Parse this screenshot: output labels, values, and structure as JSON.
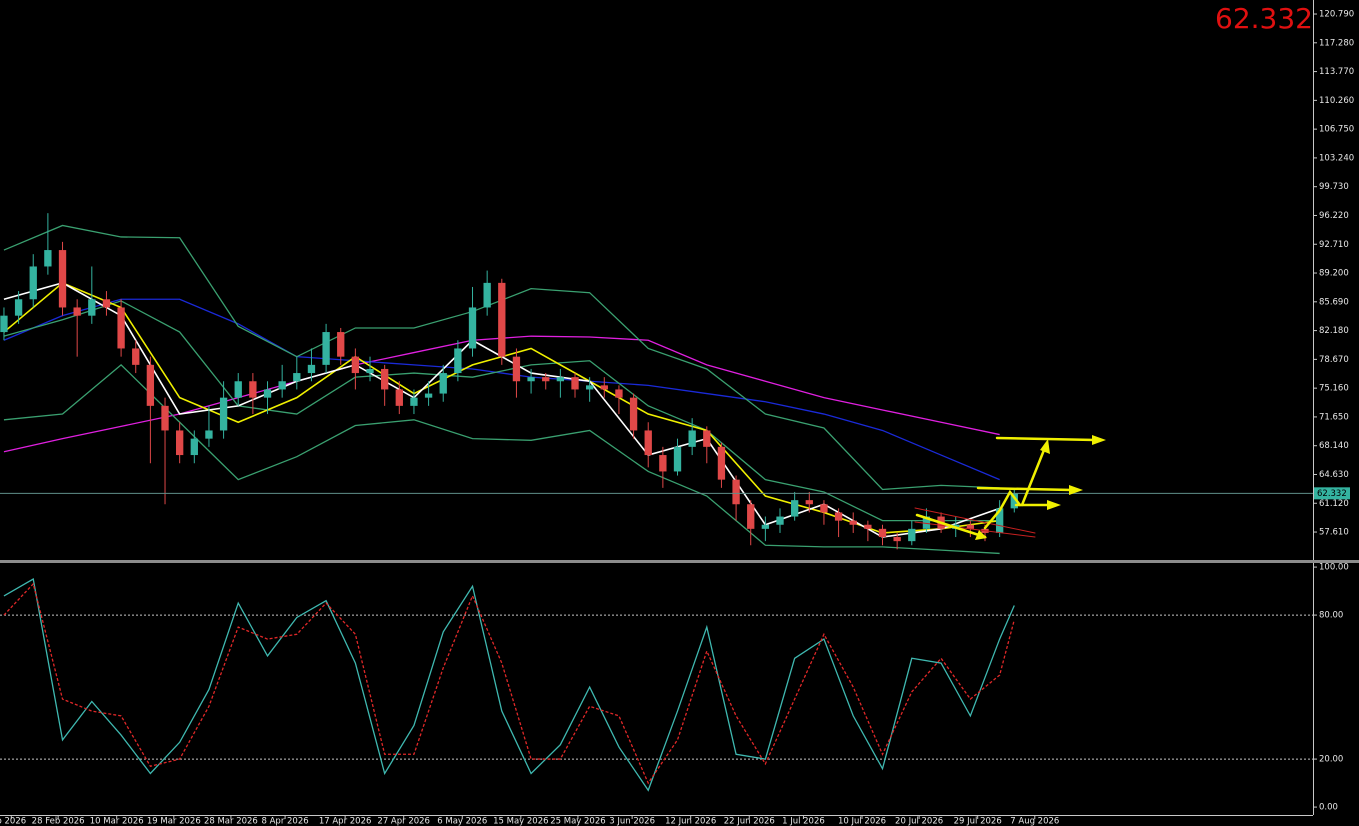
{
  "chart_data": [
    {
      "type": "candlestick",
      "last_price": 62.332,
      "price_line_color": "#5f8f8a",
      "up_color": "#34b3a0",
      "down_color": "#e04848",
      "xlim": [
        -0.27,
        89.4
      ],
      "ylim": [
        54.2,
        122.5
      ],
      "yticks": [
        {
          "value": 120.79,
          "label": "120.790"
        },
        {
          "value": 117.28,
          "label": "117.280"
        },
        {
          "value": 113.77,
          "label": "113.770"
        },
        {
          "value": 110.26,
          "label": "110.260"
        },
        {
          "value": 106.75,
          "label": "106.750"
        },
        {
          "value": 103.24,
          "label": "103.240"
        },
        {
          "value": 99.73,
          "label": "99.730"
        },
        {
          "value": 96.22,
          "label": "96.220"
        },
        {
          "value": 92.71,
          "label": "92.710"
        },
        {
          "value": 89.2,
          "label": "89.200"
        },
        {
          "value": 85.69,
          "label": "85.690"
        },
        {
          "value": 82.18,
          "label": "82.180"
        },
        {
          "value": 78.67,
          "label": "78.670"
        },
        {
          "value": 75.16,
          "label": "75.160"
        },
        {
          "value": 71.65,
          "label": "71.650"
        },
        {
          "value": 68.14,
          "label": "68.140"
        },
        {
          "value": 64.63,
          "label": "64.630"
        },
        {
          "value": 61.12,
          "label": "61.120"
        },
        {
          "value": 57.61,
          "label": "57.610"
        }
      ],
      "xticks": [
        {
          "value": 0.5,
          "label": "b 2026"
        },
        {
          "value": 3.7,
          "label": "28 Feb 2026"
        },
        {
          "value": 7.7,
          "label": "10 Mar 2026"
        },
        {
          "value": 11.6,
          "label": "19 Mar 2026"
        },
        {
          "value": 15.5,
          "label": "28 Mar 2026"
        },
        {
          "value": 19.2,
          "label": "8 Apr 2026"
        },
        {
          "value": 23.3,
          "label": "17 Apr 2026"
        },
        {
          "value": 27.3,
          "label": "27 Apr 2026"
        },
        {
          "value": 31.3,
          "label": "6 May 2026"
        },
        {
          "value": 35.3,
          "label": "15 May 2026"
        },
        {
          "value": 39.2,
          "label": "25 May 2026"
        },
        {
          "value": 42.9,
          "label": "3 Jun 2026"
        },
        {
          "value": 46.9,
          "label": "12 Jun 2026"
        },
        {
          "value": 50.9,
          "label": "22 Jun 2026"
        },
        {
          "value": 54.6,
          "label": "1 Jul 2026"
        },
        {
          "value": 58.6,
          "label": "10 Jul 2026"
        },
        {
          "value": 62.5,
          "label": "20 Jul 2026"
        },
        {
          "value": 66.5,
          "label": "29 Jul 2026"
        },
        {
          "value": 70.4,
          "label": "7 Aug 2026"
        }
      ],
      "x": [
        0,
        1,
        2,
        3,
        4,
        5,
        6,
        7,
        8,
        9,
        10,
        11,
        12,
        13,
        14,
        15,
        16,
        17,
        18,
        19,
        20,
        21,
        22,
        23,
        24,
        25,
        26,
        27,
        28,
        29,
        30,
        31,
        32,
        33,
        34,
        35,
        36,
        37,
        38,
        39,
        40,
        41,
        42,
        43,
        44,
        45,
        46,
        47,
        48,
        49,
        50,
        51,
        52,
        53,
        54,
        55,
        56,
        57,
        58,
        59,
        60,
        61,
        62,
        63,
        64,
        65,
        66,
        67,
        68,
        69
      ],
      "open": [
        82,
        84,
        86,
        90,
        92,
        85,
        84,
        86,
        85,
        80,
        78,
        73,
        70,
        67,
        69,
        70,
        74,
        76,
        74,
        75,
        76,
        77,
        78,
        82,
        79,
        77,
        77.5,
        75,
        73,
        74,
        74.5,
        77,
        80,
        85,
        88,
        79,
        76,
        76.5,
        76,
        76.5,
        75,
        75.5,
        75,
        74,
        70,
        67,
        65,
        68,
        70,
        68,
        64,
        61,
        58,
        58.5,
        59.5,
        61.5,
        61,
        60,
        59,
        58.5,
        58,
        57,
        56.5,
        58,
        59.5,
        58,
        58.5,
        58,
        57.5,
        60.5
      ],
      "high": [
        85,
        87,
        91.5,
        96.5,
        93,
        86,
        90,
        87,
        86,
        81,
        79,
        74,
        71,
        70,
        73,
        76,
        77,
        77,
        76,
        78,
        79,
        80,
        83,
        82.5,
        80,
        79,
        78,
        76,
        75,
        76,
        78,
        81,
        87.5,
        89.5,
        88.5,
        80,
        77.5,
        77,
        77.5,
        77,
        76.5,
        76.5,
        75.5,
        74.5,
        71,
        68,
        69,
        71.5,
        70.5,
        68.5,
        64.5,
        61.5,
        59.5,
        60.5,
        62.5,
        62.5,
        61.5,
        60.5,
        60,
        59,
        58.5,
        57.5,
        59,
        60.5,
        60,
        59.5,
        59,
        58.5,
        61.5,
        62.8
      ],
      "low": [
        81,
        83,
        85,
        89,
        84,
        79,
        83,
        84,
        79,
        77,
        66,
        61,
        66,
        66,
        68,
        69,
        73,
        72,
        72,
        74,
        75,
        76,
        77,
        78,
        75,
        76,
        73,
        72,
        72,
        73,
        73.5,
        76,
        79,
        84,
        78,
        74,
        74.5,
        75,
        74,
        74,
        73.5,
        74,
        72,
        69,
        65.5,
        63,
        64.5,
        67,
        66,
        63,
        59,
        56,
        56.5,
        57.5,
        59,
        60,
        58.5,
        57,
        57.5,
        56.5,
        56,
        55.5,
        56,
        57.5,
        57.5,
        57,
        57,
        56.5,
        57,
        60
      ],
      "close": [
        84,
        86,
        90,
        92,
        85,
        84,
        86,
        85,
        80,
        78,
        73,
        70,
        67,
        69,
        70,
        74,
        76,
        74,
        75,
        76,
        77,
        78,
        82,
        79,
        77,
        77.5,
        75,
        73,
        74,
        74.5,
        77,
        80,
        85,
        88,
        79,
        76,
        76.5,
        76,
        76.5,
        75,
        75.5,
        75,
        74,
        70,
        67,
        65,
        68,
        70,
        68,
        64,
        61,
        58,
        58.5,
        59.5,
        61.5,
        61,
        60,
        59,
        58.5,
        58,
        57,
        56.5,
        58,
        59.5,
        58,
        58.5,
        58,
        57.5,
        60.5,
        62.332
      ],
      "series": [
        {
          "color": "#e020e0",
          "x": [
            0,
            4,
            8,
            12,
            16,
            20,
            24,
            28,
            32,
            36,
            40,
            44,
            48,
            52,
            56,
            60,
            64,
            68
          ],
          "values": [
            67.4,
            69,
            70.5,
            72,
            74,
            76,
            78,
            79.5,
            81,
            81.5,
            81.4,
            81,
            78,
            76,
            74,
            72.5,
            71,
            69.5
          ]
        },
        {
          "color": "#1a2ad8",
          "x": [
            0,
            4,
            8,
            12,
            16,
            20,
            24,
            28,
            32,
            36,
            40,
            44,
            48,
            52,
            56,
            60,
            64,
            68
          ],
          "values": [
            81,
            84,
            86,
            86,
            83,
            79,
            78.5,
            78,
            77.5,
            76.5,
            76,
            75.5,
            74.5,
            73.5,
            72,
            70,
            67,
            64
          ]
        },
        {
          "color": "#3aa070",
          "x": [
            0,
            4,
            8,
            12,
            16,
            20,
            24,
            28,
            32,
            36,
            40,
            44,
            48,
            52,
            56,
            60,
            64,
            68
          ],
          "values": [
            92,
            95,
            93.6,
            93.5,
            82.7,
            79,
            82.5,
            82.5,
            84.5,
            87.3,
            86.8,
            80,
            77.5,
            72,
            70.3,
            62.8,
            63.3,
            63
          ]
        },
        {
          "color": "#3aa070",
          "x": [
            0,
            4,
            8,
            12,
            16,
            20,
            24,
            28,
            32,
            36,
            40,
            44,
            48,
            52,
            56,
            60,
            64,
            68
          ],
          "values": [
            81.5,
            83.5,
            85.8,
            82,
            73,
            72,
            76.5,
            77,
            76.5,
            78,
            78.5,
            73,
            70,
            64,
            62.5,
            59,
            59,
            59
          ]
        },
        {
          "color": "#3aa070",
          "x": [
            0,
            4,
            8,
            12,
            16,
            20,
            24,
            28,
            32,
            36,
            40,
            44,
            48,
            52,
            56,
            60,
            64,
            68
          ],
          "values": [
            71.3,
            72,
            78,
            71,
            64,
            66.8,
            70.6,
            71.3,
            69,
            68.8,
            70,
            65,
            62,
            56,
            55.8,
            55.8,
            55.4,
            55
          ]
        },
        {
          "color": "#f0f000",
          "x": [
            0,
            4,
            8,
            12,
            16,
            20,
            24,
            28,
            32,
            36,
            40,
            44,
            48,
            52,
            56,
            60,
            64,
            68
          ],
          "values": [
            82,
            88,
            85,
            74,
            71,
            74,
            79,
            74.5,
            78,
            80,
            76,
            72,
            70,
            62,
            60,
            57.5,
            58,
            59
          ]
        },
        {
          "color": "#ffffff",
          "x": [
            0,
            4,
            8,
            12,
            16,
            20,
            24,
            28,
            32,
            36,
            40,
            44,
            48,
            52,
            56,
            60,
            64,
            68
          ],
          "values": [
            86,
            88,
            84,
            72,
            73,
            76,
            78,
            74,
            81,
            77,
            76,
            67,
            69,
            58.5,
            61,
            57,
            58,
            60.5
          ]
        }
      ]
    },
    {
      "type": "line",
      "xlim": [
        -0.27,
        89.4
      ],
      "ylim": [
        -3.3,
        101.7
      ],
      "yticks": [
        {
          "value": 100,
          "label": "100.00"
        },
        {
          "value": 80,
          "label": "80.00"
        },
        {
          "value": 20,
          "label": "20.00"
        },
        {
          "value": 0,
          "label": "0.00"
        }
      ],
      "levels": [
        80,
        20
      ],
      "x": [
        0,
        2,
        4,
        6,
        8,
        10,
        12,
        14,
        16,
        18,
        20,
        22,
        24,
        26,
        28,
        30,
        32,
        34,
        36,
        38,
        40,
        42,
        44,
        46,
        48,
        50,
        52,
        54,
        56,
        58,
        60,
        62,
        64,
        66,
        68,
        69
      ],
      "series": [
        {
          "color": "#3fb8b0",
          "dashed": false,
          "values": [
            88,
            95,
            28,
            44,
            30,
            14,
            27,
            49,
            85,
            63,
            79,
            86,
            60,
            14,
            34,
            73,
            92,
            40,
            14,
            26,
            50,
            25,
            7,
            40,
            75,
            22,
            20,
            62,
            70,
            38,
            16,
            62,
            60,
            38,
            70,
            84
          ]
        },
        {
          "color": "#e02828",
          "dashed": true,
          "values": [
            80,
            93,
            45,
            40,
            38,
            17,
            20,
            42,
            75,
            70,
            72,
            85,
            72,
            22,
            22,
            58,
            88,
            60,
            20,
            20,
            42,
            38,
            10,
            28,
            65,
            38,
            18,
            45,
            72,
            50,
            22,
            48,
            62,
            45,
            55,
            78
          ]
        }
      ]
    }
  ]
}
